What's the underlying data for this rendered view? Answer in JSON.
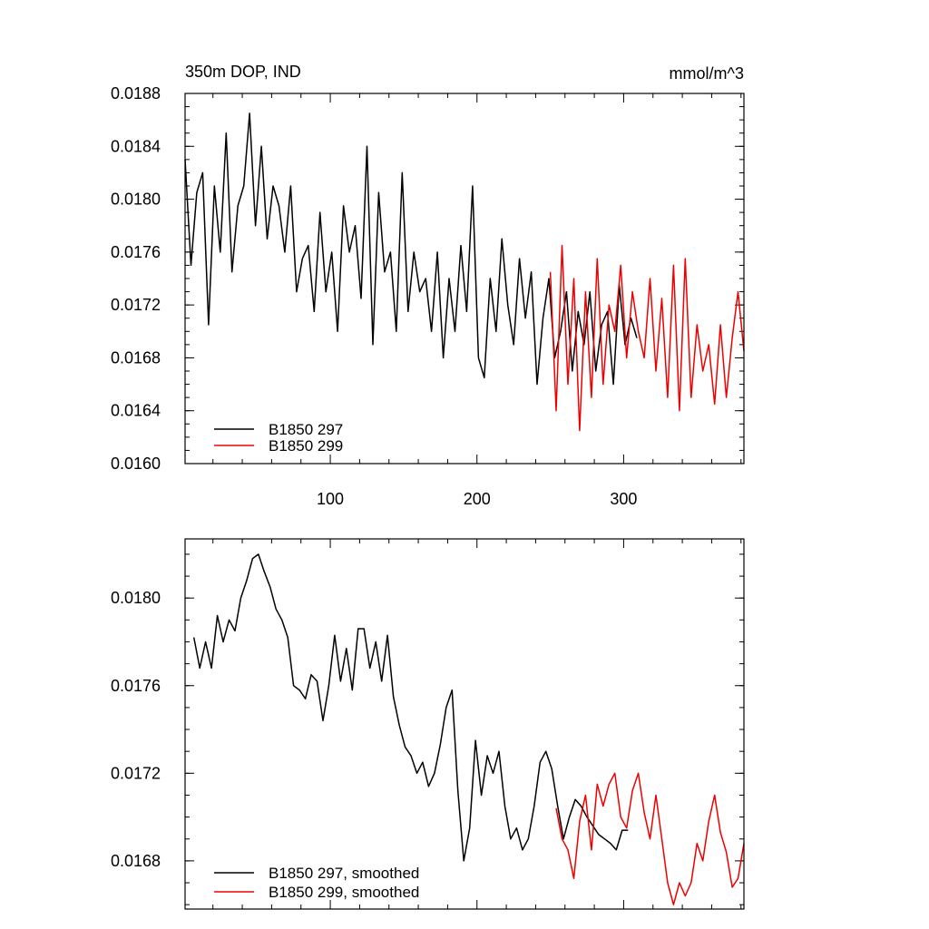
{
  "colors": {
    "series1": "#000000",
    "series2": "#ee0000"
  },
  "chart_data": [
    {
      "type": "line",
      "title": "350m DOP, IND",
      "units": "mmol/m^3",
      "xlim": [
        1,
        382
      ],
      "ylim": [
        0.016,
        0.0188
      ],
      "yticks": [
        "0.0160",
        "0.0164",
        "0.0168",
        "0.0172",
        "0.0176",
        "0.0180",
        "0.0184",
        "0.0188"
      ],
      "xticks": [
        "100",
        "200",
        "300"
      ],
      "legend_position": "bottom-left",
      "series": [
        {
          "name": "B1850 297",
          "color": "#000000",
          "x": [
            1,
            5,
            9,
            13,
            17,
            21,
            25,
            29,
            33,
            37,
            41,
            45,
            49,
            53,
            57,
            61,
            65,
            69,
            73,
            77,
            81,
            85,
            89,
            93,
            97,
            101,
            105,
            109,
            113,
            117,
            121,
            125,
            129,
            133,
            137,
            141,
            145,
            149,
            153,
            157,
            161,
            165,
            169,
            173,
            177,
            181,
            185,
            189,
            193,
            197,
            201,
            205,
            209,
            213,
            217,
            221,
            225,
            229,
            233,
            237,
            241,
            245,
            249,
            253,
            257,
            261,
            265,
            269,
            273,
            277,
            281,
            285,
            289,
            293,
            297,
            301,
            305,
            309
          ],
          "values": [
            0.0183,
            0.0175,
            0.01805,
            0.0182,
            0.01705,
            0.0181,
            0.0176,
            0.0185,
            0.01745,
            0.01795,
            0.0181,
            0.01865,
            0.0178,
            0.0184,
            0.0177,
            0.0181,
            0.01795,
            0.0176,
            0.0181,
            0.0173,
            0.01755,
            0.01765,
            0.01715,
            0.0179,
            0.0173,
            0.0176,
            0.017,
            0.01795,
            0.0176,
            0.0178,
            0.01725,
            0.0184,
            0.0169,
            0.01805,
            0.01745,
            0.0176,
            0.017,
            0.0182,
            0.01715,
            0.0176,
            0.0173,
            0.0174,
            0.017,
            0.0176,
            0.0168,
            0.0174,
            0.017,
            0.01765,
            0.01715,
            0.0181,
            0.0168,
            0.01665,
            0.0174,
            0.017,
            0.0177,
            0.0172,
            0.0169,
            0.01755,
            0.0171,
            0.01745,
            0.0166,
            0.0171,
            0.0174,
            0.0168,
            0.017,
            0.0173,
            0.0167,
            0.01715,
            0.0169,
            0.0173,
            0.0167,
            0.01705,
            0.01715,
            0.0166,
            0.01735,
            0.0169,
            0.0171,
            0.01695
          ]
        },
        {
          "name": "B1850 299",
          "color": "#ee0000",
          "x": [
            250,
            254,
            258,
            262,
            266,
            270,
            274,
            278,
            282,
            286,
            290,
            294,
            298,
            302,
            306,
            310,
            314,
            318,
            322,
            326,
            330,
            334,
            338,
            342,
            346,
            350,
            354,
            358,
            362,
            366,
            370,
            374,
            378,
            382
          ],
          "values": [
            0.01745,
            0.0164,
            0.01765,
            0.0166,
            0.0174,
            0.01625,
            0.0173,
            0.0165,
            0.01755,
            0.0166,
            0.0172,
            0.017,
            0.0175,
            0.0168,
            0.0173,
            0.017,
            0.0168,
            0.0174,
            0.0167,
            0.01725,
            0.0165,
            0.0175,
            0.0164,
            0.01755,
            0.0165,
            0.01705,
            0.0167,
            0.0169,
            0.01645,
            0.01705,
            0.0165,
            0.01695,
            0.0173,
            0.01685
          ]
        }
      ]
    },
    {
      "type": "line",
      "xlim": [
        1,
        382
      ],
      "ylim": [
        0.01658,
        0.01827
      ],
      "yticks": [
        "0.0168",
        "0.0172",
        "0.0176",
        "0.0180"
      ],
      "legend_position": "bottom-left",
      "series": [
        {
          "name": "B1850 297, smoothed",
          "color": "#000000",
          "x": [
            7,
            11,
            15,
            19,
            23,
            27,
            31,
            35,
            39,
            43,
            47,
            51,
            55,
            59,
            63,
            67,
            71,
            75,
            79,
            83,
            87,
            91,
            95,
            99,
            103,
            107,
            111,
            115,
            119,
            123,
            127,
            131,
            135,
            139,
            143,
            147,
            151,
            155,
            159,
            163,
            167,
            171,
            175,
            179,
            183,
            187,
            191,
            195,
            199,
            203,
            207,
            211,
            215,
            219,
            223,
            227,
            231,
            235,
            239,
            243,
            247,
            251,
            255,
            259,
            263,
            267,
            271,
            275,
            279,
            283,
            287,
            291,
            295,
            299,
            303
          ],
          "values": [
            0.01782,
            0.01768,
            0.0178,
            0.01768,
            0.01792,
            0.0178,
            0.0179,
            0.01785,
            0.018,
            0.01808,
            0.01818,
            0.0182,
            0.01812,
            0.01805,
            0.01795,
            0.0179,
            0.01782,
            0.0176,
            0.01758,
            0.01754,
            0.01765,
            0.01762,
            0.01744,
            0.0176,
            0.01783,
            0.01762,
            0.01777,
            0.01758,
            0.01786,
            0.01786,
            0.01768,
            0.0178,
            0.01762,
            0.01783,
            0.01755,
            0.01742,
            0.01732,
            0.01728,
            0.0172,
            0.01725,
            0.01714,
            0.0172,
            0.01733,
            0.0175,
            0.01758,
            0.01712,
            0.0168,
            0.01695,
            0.01735,
            0.0171,
            0.01728,
            0.0172,
            0.0173,
            0.01705,
            0.0169,
            0.01695,
            0.01685,
            0.0169,
            0.01705,
            0.01725,
            0.0173,
            0.01722,
            0.01705,
            0.0169,
            0.017,
            0.01708,
            0.01705,
            0.017,
            0.01696,
            0.01692,
            0.0169,
            0.01688,
            0.01685,
            0.01694,
            0.01694
          ]
        },
        {
          "name": "B1850 299, smoothed",
          "color": "#ee0000",
          "x": [
            254,
            258,
            262,
            266,
            270,
            274,
            278,
            282,
            286,
            290,
            294,
            298,
            302,
            306,
            310,
            314,
            318,
            322,
            326,
            330,
            334,
            338,
            342,
            346,
            350,
            354,
            358,
            362,
            366,
            370,
            374,
            378,
            382
          ],
          "values": [
            0.01704,
            0.0169,
            0.01685,
            0.01672,
            0.01698,
            0.0171,
            0.01685,
            0.01715,
            0.01705,
            0.01715,
            0.0172,
            0.017,
            0.01695,
            0.01712,
            0.0172,
            0.01702,
            0.0169,
            0.0171,
            0.0169,
            0.0167,
            0.0166,
            0.0167,
            0.01664,
            0.0167,
            0.01688,
            0.0168,
            0.01698,
            0.0171,
            0.01693,
            0.01684,
            0.01668,
            0.01672,
            0.01688
          ]
        }
      ]
    }
  ]
}
